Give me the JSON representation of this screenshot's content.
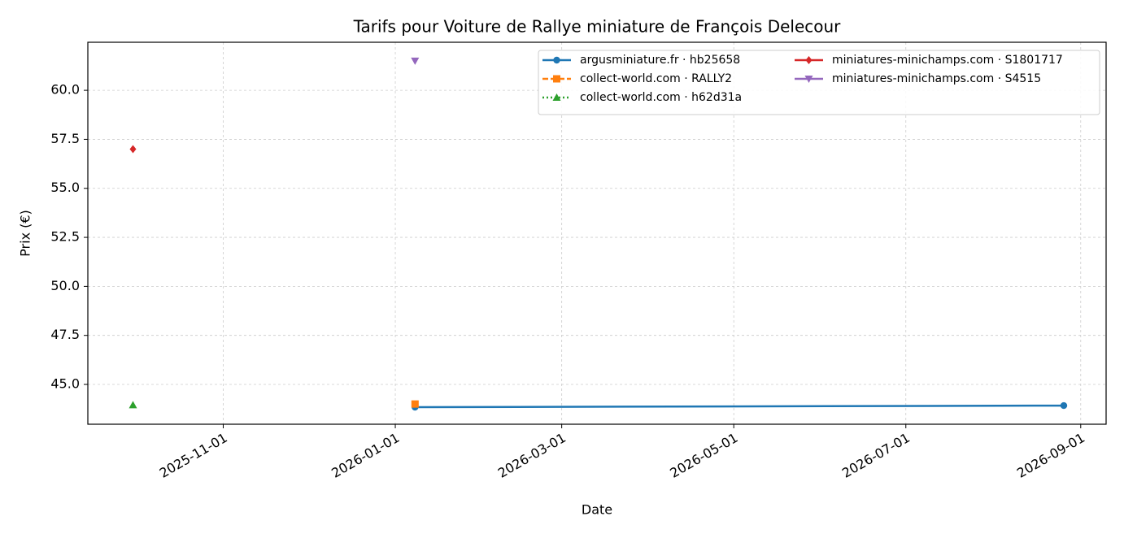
{
  "chart_data": {
    "type": "line",
    "title": "Tarifs pour Voiture de Rallye miniature de François Delecour",
    "xlabel": "Date",
    "ylabel": "Prix (€)",
    "x": [
      "2025-09-30",
      "2026-01-08",
      "2026-08-26"
    ],
    "series": [
      {
        "name": "argusminiature.fr · hb25658",
        "color": "#1f77b4",
        "marker": "circle",
        "linestyle": "solid",
        "values": [
          null,
          43.84,
          43.92
        ]
      },
      {
        "name": "collect-world.com · RALLY2",
        "color": "#ff7f0e",
        "marker": "square",
        "linestyle": "dashed",
        "values": [
          null,
          44.0,
          null
        ]
      },
      {
        "name": "collect-world.com · h62d31a",
        "color": "#2ca02c",
        "marker": "triangle-up",
        "linestyle": "dotted",
        "values": [
          43.95,
          null,
          null
        ]
      },
      {
        "name": "miniatures-minichamps.com · S1801717",
        "color": "#d62728",
        "marker": "diamond",
        "linestyle": "solid",
        "values": [
          57.0,
          null,
          null
        ]
      },
      {
        "name": "miniatures-minichamps.com · S4515",
        "color": "#9467bd",
        "marker": "triangle-down",
        "linestyle": "solid",
        "values": [
          null,
          61.5,
          null
        ]
      }
    ],
    "xlim": [
      "2025-09-14",
      "2026-09-10"
    ],
    "xticks": [
      "2025-11-01",
      "2026-01-01",
      "2026-03-01",
      "2026-05-01",
      "2026-07-01",
      "2026-09-01"
    ],
    "ylim": [
      42.97,
      62.45
    ],
    "yticks": [
      {
        "value": 45,
        "label": "45.0"
      },
      47.5,
      {
        "value": 50,
        "label": "50.0"
      },
      52.5,
      {
        "value": 55,
        "label": "55.0"
      },
      57.5,
      {
        "value": 60,
        "label": "60.0"
      }
    ],
    "grid": true,
    "legend": "upper right",
    "legend_columns": 2
  }
}
